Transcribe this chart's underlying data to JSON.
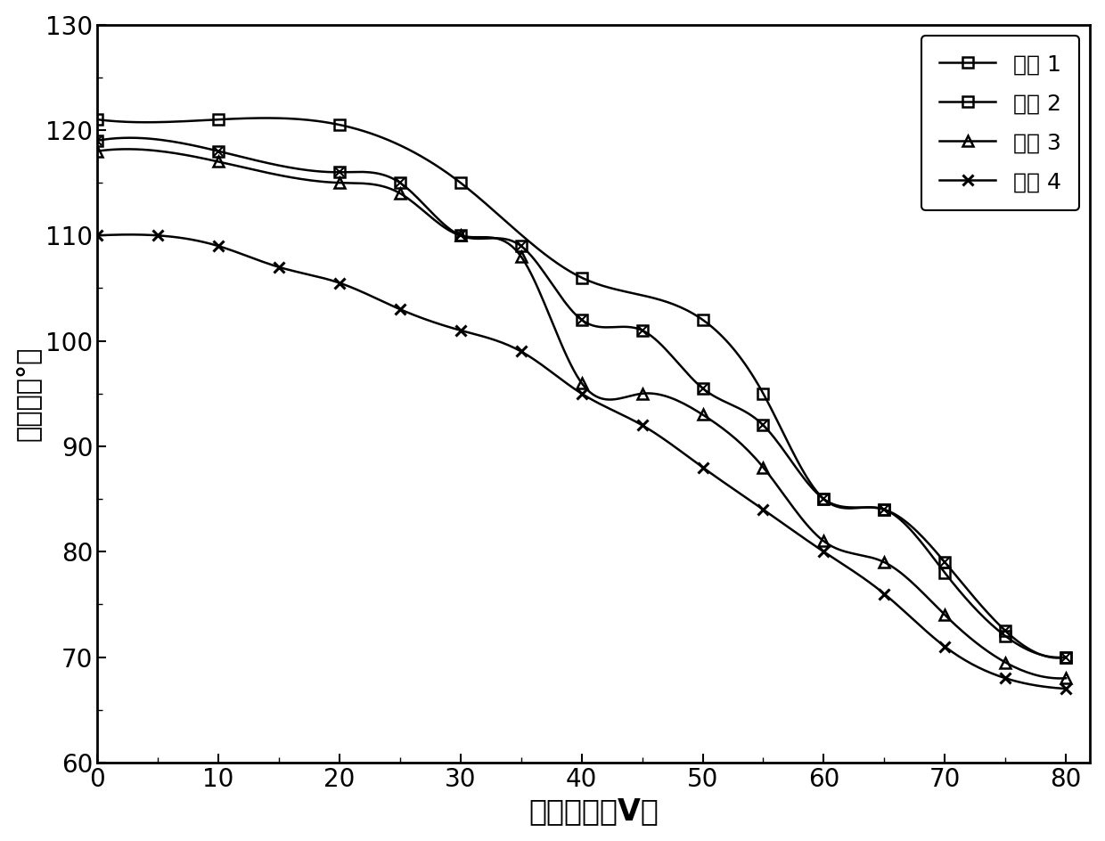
{
  "curve1": {
    "x": [
      0,
      10,
      20,
      30,
      40,
      50,
      55,
      60,
      65,
      70,
      75,
      80
    ],
    "y": [
      121.0,
      121.0,
      120.5,
      115.0,
      106.0,
      102.0,
      95.0,
      85.0,
      84.0,
      78.0,
      72.0,
      70.0
    ],
    "label": "曲线 1"
  },
  "curve2": {
    "x": [
      0,
      10,
      20,
      25,
      30,
      35,
      40,
      45,
      50,
      55,
      60,
      65,
      70,
      75,
      80
    ],
    "y": [
      119.0,
      118.0,
      116.0,
      115.0,
      110.0,
      109.0,
      102.0,
      101.0,
      95.5,
      92.0,
      85.0,
      84.0,
      79.0,
      72.5,
      70.0
    ],
    "label": "曲线 2"
  },
  "curve3": {
    "x": [
      0,
      10,
      20,
      25,
      30,
      35,
      40,
      45,
      50,
      55,
      60,
      65,
      70,
      75,
      80
    ],
    "y": [
      118.0,
      117.0,
      115.0,
      114.0,
      110.0,
      108.0,
      96.0,
      95.0,
      93.0,
      88.0,
      81.0,
      79.0,
      74.0,
      69.5,
      68.0
    ],
    "label": "曲线 3"
  },
  "curve4": {
    "x": [
      0,
      5,
      10,
      15,
      20,
      25,
      30,
      35,
      40,
      45,
      50,
      55,
      60,
      65,
      70,
      75,
      80
    ],
    "y": [
      110.0,
      110.0,
      109.0,
      107.0,
      105.5,
      103.0,
      101.0,
      99.0,
      95.0,
      92.0,
      88.0,
      84.0,
      80.0,
      76.0,
      71.0,
      68.0,
      67.0
    ],
    "label": "曲线 4"
  },
  "xlabel": "施加电压（V）",
  "ylabel": "接触角（°）",
  "xlim": [
    0,
    82
  ],
  "ylim": [
    60,
    130
  ],
  "xticks": [
    0,
    10,
    20,
    30,
    40,
    50,
    60,
    70,
    80
  ],
  "yticks": [
    60,
    70,
    80,
    90,
    100,
    110,
    120,
    130
  ],
  "linewidth": 1.8,
  "markersize": 9,
  "xlabel_fontsize": 24,
  "ylabel_fontsize": 22,
  "tick_fontsize": 20,
  "legend_fontsize": 18,
  "spine_linewidth": 2.0
}
